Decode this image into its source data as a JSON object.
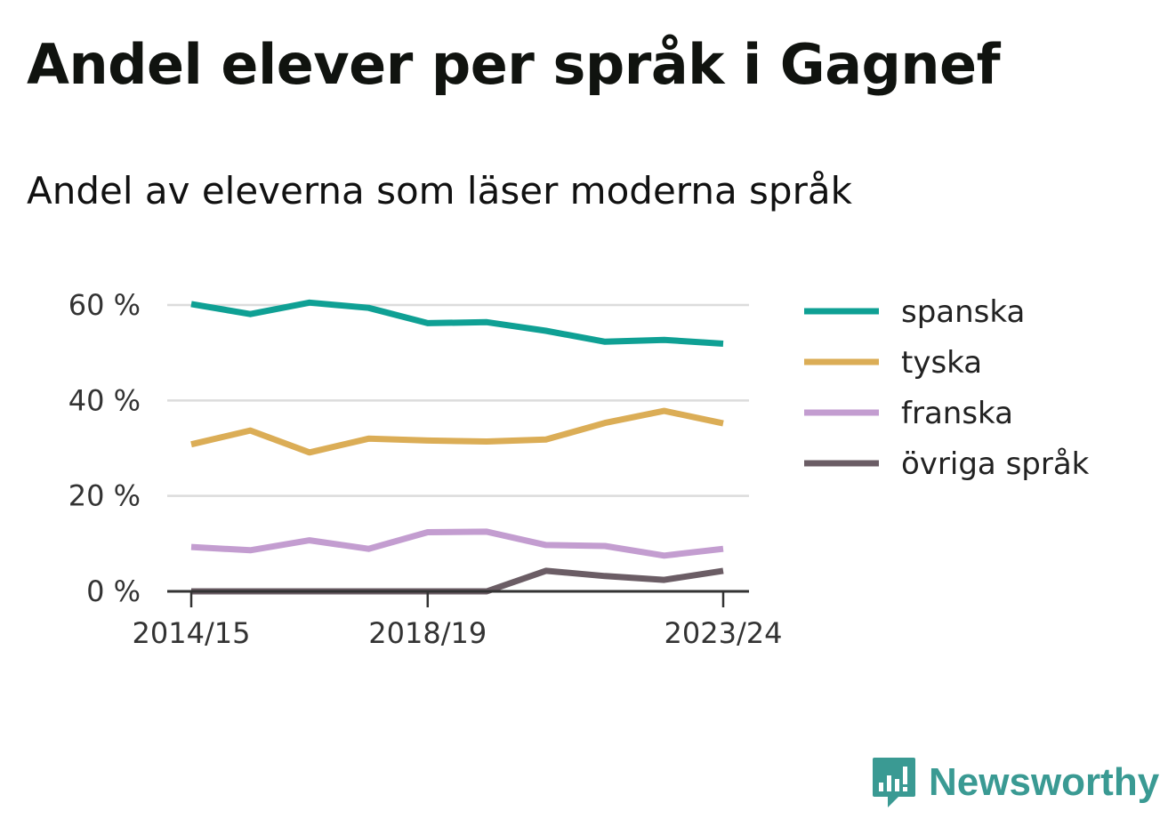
{
  "header": {
    "title": "Andel elever per språk i Gagnef",
    "subtitle": "Andel av eleverna som läser moderna språk"
  },
  "brand": {
    "name": "Newsworthy",
    "icon": "newsworthy-logo-icon",
    "color": "#3a9a93"
  },
  "chart_data": {
    "type": "line",
    "title": "Andel elever per språk i Gagnef",
    "subtitle": "Andel av eleverna som läser moderna språk",
    "x": [
      "2014/15",
      "2015/16",
      "2016/17",
      "2017/18",
      "2018/19",
      "2019/20",
      "2020/21",
      "2021/22",
      "2022/23",
      "2023/24"
    ],
    "x_tick_labels": [
      "2014/15",
      "2018/19",
      "2023/24"
    ],
    "y_ticks": [
      0,
      20,
      40,
      60
    ],
    "y_tick_labels": [
      "0 %",
      "20 %",
      "40 %",
      "60 %"
    ],
    "ylim": [
      0,
      60
    ],
    "grid": true,
    "legend": "right",
    "series": [
      {
        "name": "spanska",
        "color": "#0fa094",
        "values": [
          60.2,
          58.1,
          60.5,
          59.4,
          56.2,
          56.4,
          54.6,
          52.3,
          52.7,
          51.9
        ]
      },
      {
        "name": "tyska",
        "color": "#dbad56",
        "values": [
          30.8,
          33.7,
          29.1,
          32.0,
          31.6,
          31.4,
          31.8,
          35.3,
          37.8,
          35.2
        ]
      },
      {
        "name": "franska",
        "color": "#c39dd0",
        "values": [
          9.3,
          8.6,
          10.7,
          8.9,
          12.4,
          12.5,
          9.7,
          9.5,
          7.5,
          8.9
        ]
      },
      {
        "name": "övriga språk",
        "color": "#6b5d65",
        "values": [
          0,
          0,
          0,
          0,
          0,
          0,
          4.3,
          3.2,
          2.4,
          4.3
        ]
      }
    ]
  }
}
